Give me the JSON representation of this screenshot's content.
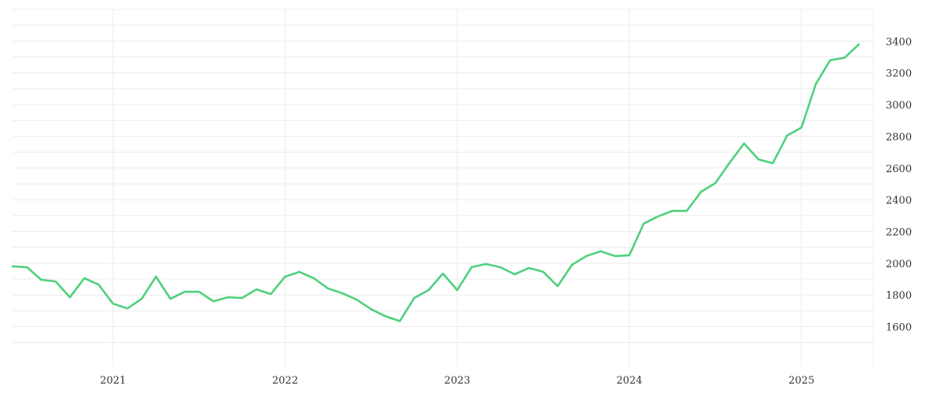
{
  "chart_data": {
    "type": "line",
    "title": "",
    "xlabel": "",
    "ylabel": "",
    "x_ticks": [
      "2021",
      "2022",
      "2023",
      "2024",
      "2025"
    ],
    "y_ticks": [
      1600,
      1800,
      2000,
      2200,
      2400,
      2600,
      2800,
      3000,
      3200,
      3400
    ],
    "ylim": [
      1350,
      3600
    ],
    "xlim": [
      "2020-06-01",
      "2025-06-01"
    ],
    "grid": true,
    "y_axis_position": "right",
    "legend": "none",
    "series": [
      {
        "color": "#4fd17c",
        "x": [
          "2020-06",
          "2020-07",
          "2020-08",
          "2020-09",
          "2020-10",
          "2020-11",
          "2020-12",
          "2021-01",
          "2021-02",
          "2021-03",
          "2021-04",
          "2021-05",
          "2021-06",
          "2021-07",
          "2021-08",
          "2021-09",
          "2021-10",
          "2021-11",
          "2021-12",
          "2022-01",
          "2022-02",
          "2022-03",
          "2022-04",
          "2022-05",
          "2022-06",
          "2022-07",
          "2022-08",
          "2022-09",
          "2022-10",
          "2022-11",
          "2022-12",
          "2023-01",
          "2023-02",
          "2023-03",
          "2023-04",
          "2023-05",
          "2023-06",
          "2023-07",
          "2023-08",
          "2023-09",
          "2023-10",
          "2023-11",
          "2023-12",
          "2024-01",
          "2024-02",
          "2024-03",
          "2024-04",
          "2024-05",
          "2024-06",
          "2024-07",
          "2024-08",
          "2024-09",
          "2024-10",
          "2024-11",
          "2024-12",
          "2025-01",
          "2025-02",
          "2025-03",
          "2025-04",
          "2025-05"
        ],
        "values": [
          1980,
          1975,
          1895,
          1885,
          1785,
          1905,
          1865,
          1745,
          1715,
          1775,
          1915,
          1775,
          1820,
          1820,
          1760,
          1785,
          1780,
          1835,
          1805,
          1915,
          1945,
          1905,
          1840,
          1810,
          1770,
          1710,
          1665,
          1635,
          1780,
          1830,
          1935,
          1830,
          1975,
          1995,
          1975,
          1930,
          1970,
          1945,
          1855,
          1990,
          2045,
          2075,
          2045,
          2050,
          2250,
          2295,
          2330,
          2330,
          2450,
          2505,
          2635,
          2755,
          2655,
          2630,
          2805,
          2855,
          3130,
          3280,
          3295,
          3380
        ]
      }
    ]
  }
}
